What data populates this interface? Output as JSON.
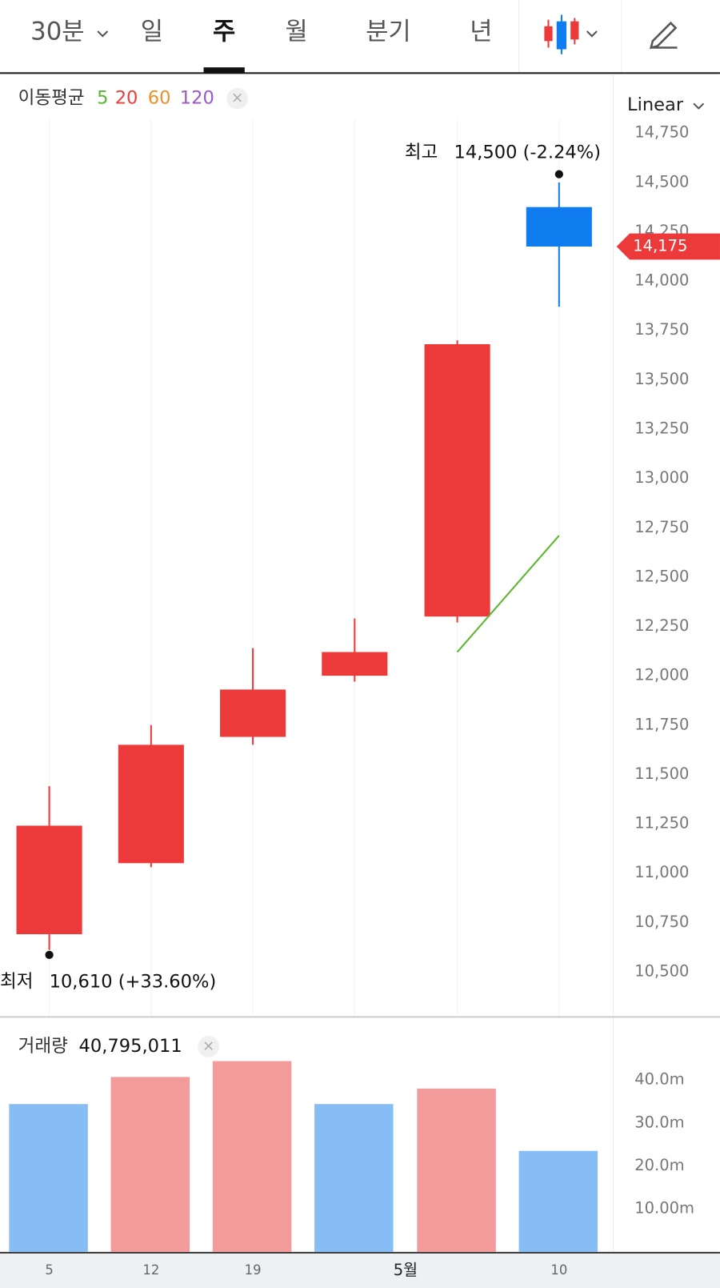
{
  "tabs": [
    "30분",
    "일",
    "주",
    "월",
    "분기",
    "년"
  ],
  "selected_tab": 2,
  "chart_data": [
    {
      "type": "candlestick",
      "legend_title": "이동평균",
      "scale_label": "Linear",
      "moving_averages": [
        {
          "name": "5",
          "color": "#5cb531",
          "values": [
            null,
            null,
            null,
            null,
            12120,
            12710
          ]
        },
        {
          "name": "20",
          "color": "#e8413d"
        },
        {
          "name": "60",
          "color": "#e8932a"
        },
        {
          "name": "120",
          "color": "#9b59c6"
        }
      ],
      "categories": [
        "5",
        "12",
        "19",
        null,
        null,
        "10"
      ],
      "month_label": "5월",
      "open": [
        10690,
        11050,
        11690,
        12000,
        12300,
        14375
      ],
      "high": [
        11440,
        11750,
        12140,
        12290,
        13700,
        14500
      ],
      "low": [
        10610,
        11030,
        11650,
        11970,
        12270,
        13870
      ],
      "close": [
        11240,
        11650,
        11930,
        12120,
        13680,
        14175
      ],
      "up_color": "#ec3a3a",
      "down_color": "#0f7df0",
      "ylim": [
        10275,
        14800
      ],
      "yticks": [
        {
          "value": 10500,
          "label": "10,500"
        },
        {
          "value": 10750,
          "label": "10,750"
        },
        {
          "value": 11000,
          "label": "11,000"
        },
        {
          "value": 11250,
          "label": "11,250"
        },
        {
          "value": 11500,
          "label": "11,500"
        },
        {
          "value": 11750,
          "label": "11,750"
        },
        {
          "value": 12000,
          "label": "12,000"
        },
        {
          "value": 12250,
          "label": "12,250"
        },
        {
          "value": 12500,
          "label": "12,500"
        },
        {
          "value": 12750,
          "label": "12,750"
        },
        {
          "value": 13000,
          "label": "13,000"
        },
        {
          "value": 13250,
          "label": "13,250"
        },
        {
          "value": 13500,
          "label": "13,500"
        },
        {
          "value": 13750,
          "label": "13,750"
        },
        {
          "value": 14000,
          "label": "14,000"
        },
        {
          "value": 14250,
          "label": "14,250"
        },
        {
          "value": 14500,
          "label": "14,500"
        },
        {
          "value": 14750,
          "label": "14,750"
        }
      ],
      "annotations": [
        {
          "label": "최고",
          "text": "14,500 (-2.24%)",
          "value": 14500,
          "index": 5
        },
        {
          "label": "최저",
          "text": "10,610 (+33.60%)",
          "value": 10610,
          "index": 0
        }
      ],
      "current_price": {
        "value": 14175,
        "label": "14,175",
        "color": "#ec3a3a"
      }
    },
    {
      "type": "bar",
      "title": "거래량",
      "title_value": "40,795,011",
      "values": [
        34.4,
        40.7,
        44.4,
        34.4,
        38.0,
        23.5
      ],
      "colors": [
        "#87bdf5",
        "#f39b9b",
        "#f39b9b",
        "#87bdf5",
        "#f39b9b",
        "#87bdf5"
      ],
      "ylim": [
        0,
        54.3
      ],
      "yticks": [
        {
          "value": 10,
          "label": "10.00m"
        },
        {
          "value": 20,
          "label": "20.0m"
        },
        {
          "value": 30,
          "label": "30.0m"
        },
        {
          "value": 40,
          "label": "40.0m"
        }
      ]
    }
  ]
}
